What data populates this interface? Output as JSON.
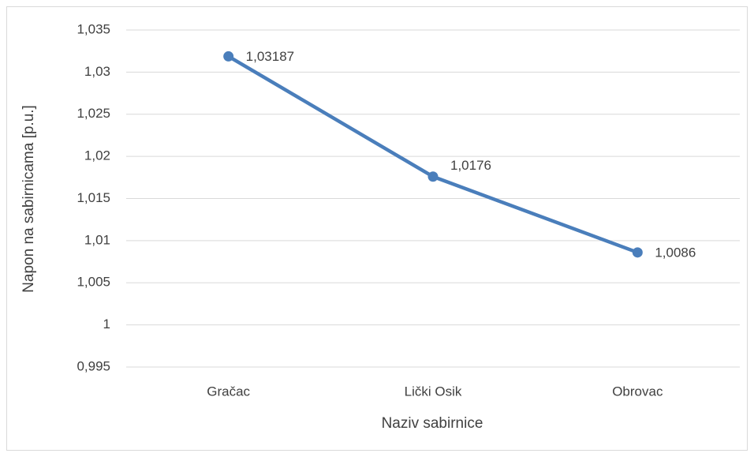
{
  "chart_data": {
    "type": "line",
    "categories": [
      "Gračac",
      "Lički Osik",
      "Obrovac"
    ],
    "values": [
      1.03187,
      1.0176,
      1.0086
    ],
    "value_labels": [
      "1,03187",
      "1,0176",
      "1,0086"
    ],
    "color": "#4a7ebb",
    "xlabel": "Naziv sabirnice",
    "ylabel": "Napon na sabirnicama [p.u.]",
    "ylim": [
      0.995,
      1.035
    ],
    "yticks": [
      {
        "value": 0.995,
        "label": "0,995"
      },
      1,
      {
        "value": 1.005,
        "label": "1,005"
      },
      {
        "value": 1.01,
        "label": "1,01"
      },
      {
        "value": 1.015,
        "label": "1,015"
      },
      {
        "value": 1.02,
        "label": "1,02"
      },
      {
        "value": 1.025,
        "label": "1,025"
      },
      {
        "value": 1.03,
        "label": "1,03"
      },
      {
        "value": 1.035,
        "label": "1,035"
      }
    ],
    "grid": true
  }
}
